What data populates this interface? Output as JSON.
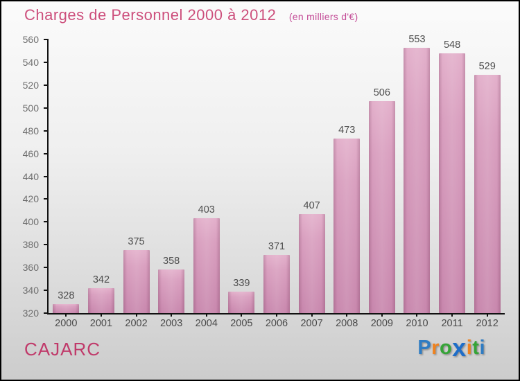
{
  "header": {
    "title": "Charges de Personnel 2000 à 2012",
    "subtitle": "(en milliers d'€)"
  },
  "footer": {
    "place_name": "CAJARC"
  },
  "logo": {
    "name": "Proxiti",
    "letters": [
      {
        "ch": "P",
        "color": "#2f7cc3",
        "big": false
      },
      {
        "ch": "r",
        "color": "#f0821e",
        "big": false
      },
      {
        "ch": "o",
        "color": "#35a437",
        "big": false
      },
      {
        "ch": "x",
        "color": "#1e6dc8",
        "big": true
      },
      {
        "ch": "i",
        "color": "#f0821e",
        "big": false
      },
      {
        "ch": "t",
        "color": "#35a437",
        "big": false
      },
      {
        "ch": "i",
        "color": "#2f7cc3",
        "big": false
      }
    ]
  },
  "colors": {
    "title_text": "#cd4f7c",
    "subtitle_text": "#c44e98",
    "place_text": "#c03a6a",
    "bar_top": "#e3b0cb",
    "bar_bottom": "#c887ad",
    "axis": "#111111",
    "tick_text": "#6e6e6e"
  },
  "chart_data": {
    "type": "bar",
    "title": "Charges de Personnel 2000 à 2012",
    "subtitle": "(en milliers d'€)",
    "categories": [
      "2000",
      "2001",
      "2002",
      "2003",
      "2004",
      "2005",
      "2006",
      "2007",
      "2008",
      "2009",
      "2010",
      "2011",
      "2012"
    ],
    "values": [
      328,
      342,
      375,
      358,
      403,
      339,
      371,
      407,
      473,
      506,
      553,
      548,
      529
    ],
    "xlabel": "",
    "ylabel": "",
    "ylim": [
      320,
      560
    ],
    "yticks": [
      320,
      340,
      360,
      380,
      400,
      420,
      440,
      460,
      480,
      500,
      520,
      540,
      560
    ],
    "grid": false,
    "legend": false,
    "value_labels": true
  }
}
